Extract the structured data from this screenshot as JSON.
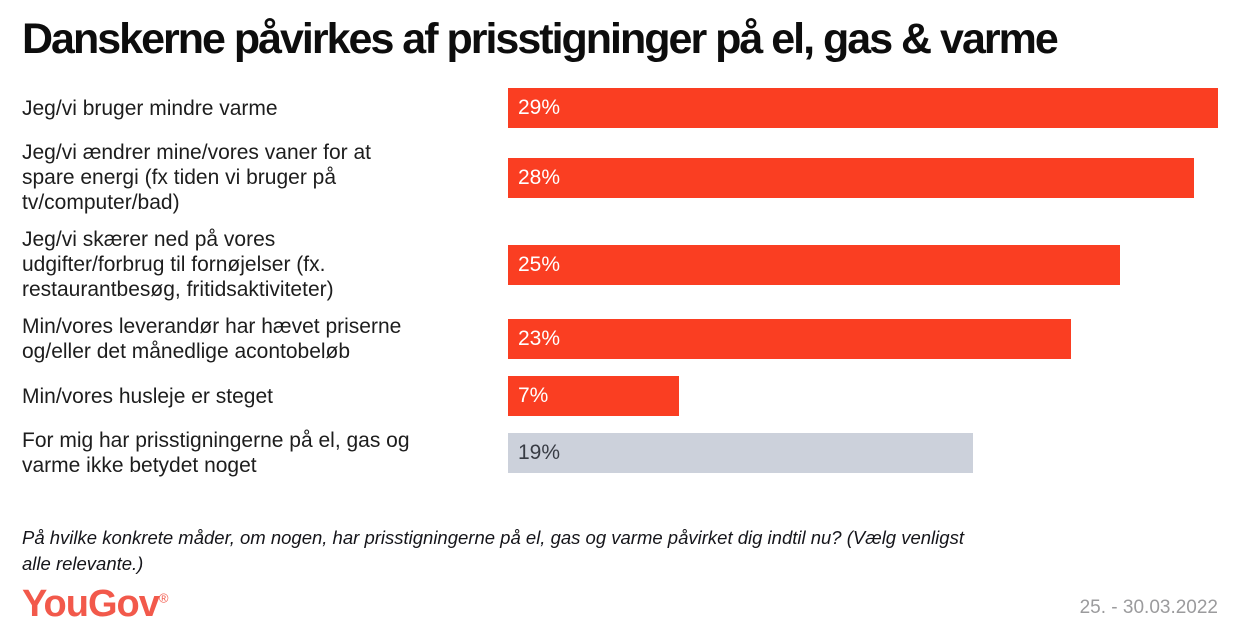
{
  "title": "Danskerne påvirkes af prisstigninger på el, gas & varme",
  "chart_data": {
    "type": "bar",
    "orientation": "horizontal",
    "title": "Danskerne påvirkes af prisstigninger på el, gas & varme",
    "categories": [
      "Jeg/vi bruger mindre varme",
      "Jeg/vi ændrer mine/vores vaner for at\nspare energi (fx tiden vi bruger på\ntv/computer/bad)",
      "Jeg/vi skærer ned på vores\nudgifter/forbrug til fornøjelser (fx.\nrestaurantbesøg, fritidsaktiviteter)",
      "Min/vores leverandør har hævet priserne\nog/eller det månedlige acontobeløb",
      "Min/vores husleje er steget",
      "For mig har prisstigningerne på el, gas og\nvarme ikke betydet noget"
    ],
    "values": [
      29,
      28,
      25,
      23,
      7,
      19
    ],
    "value_labels": [
      "29%",
      "28%",
      "25%",
      "23%",
      "7%",
      "19%"
    ],
    "bar_colors": [
      "#FA3E22",
      "#FA3E22",
      "#FA3E22",
      "#FA3E22",
      "#FA3E22",
      "#CCD1DB"
    ],
    "xlim": [
      0,
      29
    ],
    "grid": false,
    "legend": false,
    "axis_labels": false,
    "value_label_position": "inside-left"
  },
  "footnote": "På hvilke konkrete måder, om nogen, har prisstigningerne på el, gas og varme påvirket dig indtil nu? (Vælg venligst\nalle relevante.)",
  "footer": {
    "logo_text": "YouGov",
    "logo_reg": "®",
    "date_range": "25. - 30.03.2022"
  },
  "colors": {
    "bar_red": "#FA3E22",
    "bar_neutral": "#CCD1DB",
    "neutral_value_text": "#383C44",
    "logo_coral": "#F2594B",
    "date_gray": "#9B9B9D",
    "label_text": "#1d1d1d"
  }
}
